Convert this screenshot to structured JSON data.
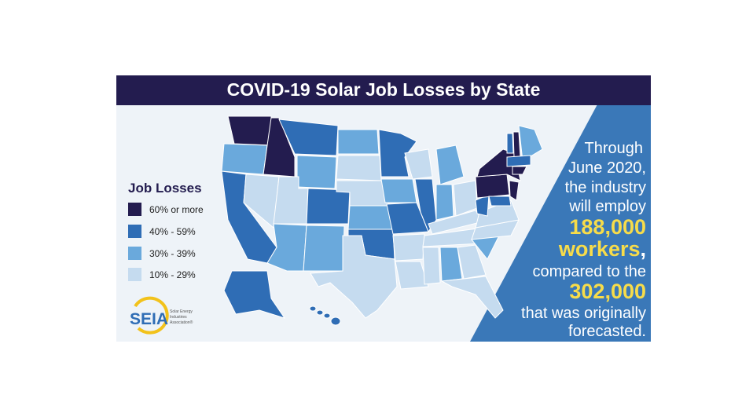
{
  "header": {
    "title": "COVID-19 Solar Job Losses by State"
  },
  "legend": {
    "title": "Job Losses",
    "items": [
      "60% or more",
      "40% - 59%",
      "30% - 39%",
      "10% - 29%"
    ]
  },
  "callout": {
    "lines": [
      "Through",
      "June 2020,",
      "the industry",
      "will employ"
    ],
    "highlight1": "188,000",
    "highlight2": "workers",
    "comma": ",",
    "lines2": [
      "compared to the"
    ],
    "highlight3": "302,000",
    "lines3": [
      "that was originally",
      "forecasted."
    ]
  },
  "logo": {
    "name": "SEIA",
    "tagline": [
      "Solar Energy",
      "Industries",
      "Association®"
    ]
  }
}
